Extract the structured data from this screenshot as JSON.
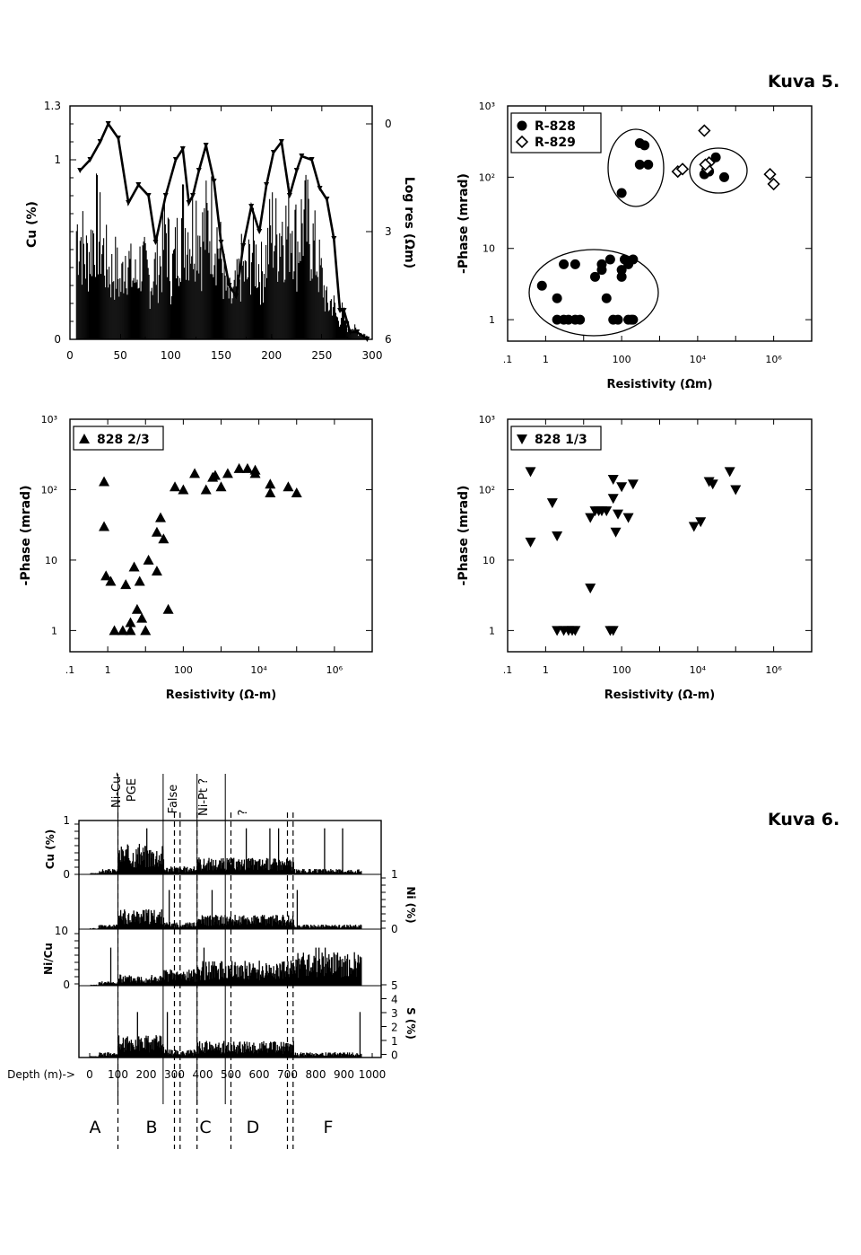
{
  "figure_labels": {
    "kuva5": "Kuva 5.",
    "kuva6": "Kuva 6."
  },
  "chart_data": [
    {
      "id": "cu-logres",
      "type": "bar",
      "xlabel": "",
      "ylabel": "Cu (%)",
      "y2label": "Log res (Ωm)",
      "xlim": [
        0,
        300
      ],
      "ylim": [
        0,
        1.3
      ],
      "y2lim": [
        -0.5,
        6
      ],
      "y2_inverted": true,
      "x_ticks": [
        "0",
        "50",
        "100",
        "150",
        "200",
        "250",
        "300"
      ],
      "y_ticks": [
        "0",
        "1",
        "1.3"
      ],
      "y2_ticks": [
        "0",
        "3",
        "6"
      ],
      "cu_envelope": {
        "x": [
          5,
          10,
          15,
          20,
          25,
          30,
          35,
          40,
          45,
          50,
          55,
          60,
          65,
          70,
          75,
          80,
          85,
          90,
          95,
          100,
          105,
          110,
          115,
          120,
          125,
          130,
          135,
          140,
          145,
          150,
          155,
          160,
          165,
          170,
          175,
          180,
          185,
          190,
          195,
          200,
          205,
          210,
          215,
          220,
          225,
          230,
          235,
          240,
          245,
          250,
          255,
          260,
          265,
          270,
          275,
          280,
          285,
          290,
          295
        ],
        "values": [
          0.85,
          0.8,
          0.6,
          0.7,
          0.9,
          0.75,
          0.6,
          0.5,
          0.55,
          0.4,
          0.7,
          0.5,
          0.45,
          0.6,
          0.5,
          0.45,
          0.55,
          0.6,
          0.85,
          0.5,
          0.65,
          0.9,
          0.85,
          0.8,
          0.95,
          0.75,
          0.85,
          0.9,
          0.8,
          0.6,
          0.35,
          0.3,
          0.4,
          0.55,
          0.45,
          0.7,
          0.6,
          0.5,
          0.65,
          0.85,
          0.75,
          0.9,
          0.8,
          0.95,
          0.7,
          0.9,
          0.85,
          0.75,
          0.6,
          0.45,
          0.25,
          0.3,
          0.15,
          0.2,
          0.1,
          0.1,
          0.05,
          0.05,
          0.02
        ]
      },
      "logres_line": {
        "x": [
          10,
          20,
          30,
          38,
          48,
          58,
          68,
          78,
          85,
          95,
          105,
          112,
          118,
          122,
          128,
          135,
          143,
          150,
          158,
          165,
          172,
          180,
          188,
          195,
          202,
          210,
          218,
          225,
          230,
          240,
          248,
          255,
          262,
          268,
          272,
          278,
          285,
          295
        ],
        "values": [
          1.3,
          1.0,
          0.5,
          0.0,
          0.4,
          2.2,
          1.7,
          2.0,
          3.3,
          2.0,
          1.0,
          0.7,
          2.2,
          2.0,
          1.3,
          0.6,
          1.6,
          3.3,
          4.5,
          4.8,
          3.4,
          2.3,
          3.0,
          1.7,
          0.8,
          0.5,
          2.0,
          1.3,
          0.9,
          1.0,
          1.8,
          2.1,
          3.2,
          5.2,
          5.2,
          5.8,
          5.8,
          6.0
        ]
      }
    },
    {
      "id": "r828-r829",
      "type": "scatter",
      "xlabel": "Resistivity (Ωm)",
      "ylabel": "-Phase (mrad)",
      "xscale": "log",
      "yscale": "log",
      "xlim": [
        0.1,
        10000000
      ],
      "ylim": [
        0.5,
        1000
      ],
      "x_ticks": [
        ".1",
        "1",
        "100",
        "10⁴",
        "10⁶"
      ],
      "y_ticks": [
        "1",
        "10",
        "10²",
        "10³"
      ],
      "legend": "top-left",
      "series": [
        {
          "name": "R-828",
          "marker": "filled-circle",
          "x": [
            0.8,
            3,
            2,
            6,
            4,
            8,
            20,
            30,
            40,
            60,
            80,
            120,
            150,
            180,
            2,
            3,
            6,
            200,
            30,
            50,
            100,
            200,
            100,
            150,
            300,
            20000,
            50000,
            30000,
            15000,
            100,
            300,
            500,
            400
          ],
          "y": [
            3,
            6,
            2,
            1,
            1,
            1,
            4,
            6,
            2,
            1,
            1,
            7,
            1,
            1,
            1,
            1,
            6,
            1,
            5,
            7,
            5,
            7,
            4,
            6,
            300,
            120,
            100,
            190,
            110,
            60,
            150,
            150,
            280
          ]
        },
        {
          "name": "R-829",
          "marker": "open-diamond",
          "x": [
            3000,
            4000,
            15000,
            20000,
            800000,
            1000000,
            18000,
            16000
          ],
          "y": [
            120,
            130,
            450,
            160,
            110,
            80,
            130,
            150
          ]
        }
      ],
      "annotations": [
        "ellipse-low-cluster",
        "ellipse-mid-cluster",
        "ellipse-high-cluster"
      ]
    },
    {
      "id": "828-2-3",
      "type": "scatter",
      "xlabel": "Resistivity (Ω-m)",
      "ylabel": "-Phase (mrad)",
      "xscale": "log",
      "yscale": "log",
      "xlim": [
        0.1,
        10000000
      ],
      "ylim": [
        0.5,
        1000
      ],
      "x_ticks": [
        ".1",
        "1",
        "100",
        "10⁴",
        "10⁶"
      ],
      "y_ticks": [
        "1",
        "10",
        "10²",
        "10³"
      ],
      "legend": "top-left",
      "series": [
        {
          "name": "828 2/3",
          "marker": "filled-triangle-up",
          "x": [
            0.8,
            0.8,
            0.9,
            1.2,
            1.5,
            2.5,
            3,
            4,
            4,
            5,
            6,
            7,
            8,
            10,
            12,
            20,
            20,
            25,
            30,
            40,
            60,
            100,
            200,
            400,
            600,
            700,
            1000,
            1500,
            3000,
            5000,
            8000,
            8000,
            20000,
            20000,
            60000,
            100000
          ],
          "y": [
            130,
            30,
            6,
            5,
            1,
            1,
            4.5,
            1.3,
            1,
            8,
            2,
            5,
            1.5,
            1,
            10,
            7,
            25,
            40,
            20,
            2,
            110,
            100,
            170,
            100,
            150,
            160,
            110,
            170,
            200,
            200,
            190,
            170,
            90,
            120,
            110,
            90
          ]
        }
      ]
    },
    {
      "id": "828-1-3",
      "type": "scatter",
      "xlabel": "Resistivity (Ω-m)",
      "ylabel": "-Phase (mrad)",
      "xscale": "log",
      "yscale": "log",
      "xlim": [
        0.1,
        10000000
      ],
      "ylim": [
        0.5,
        1000
      ],
      "x_ticks": [
        ".1",
        "1",
        "100",
        "10⁴",
        "10⁶"
      ],
      "y_ticks": [
        "1",
        "10",
        "10²",
        "10³"
      ],
      "legend": "top-left",
      "series": [
        {
          "name": "828 1/3",
          "marker": "filled-triangle-down",
          "x": [
            0.4,
            0.4,
            1.5,
            2,
            2,
            3,
            4,
            5,
            6,
            15,
            15,
            20,
            25,
            30,
            40,
            50,
            60,
            60,
            60,
            70,
            80,
            100,
            150,
            200,
            8000,
            12000,
            20000,
            25000,
            70000,
            100000
          ],
          "y": [
            180,
            18,
            65,
            22,
            1,
            1,
            1,
            1,
            1,
            4,
            40,
            50,
            50,
            50,
            50,
            1,
            1,
            140,
            75,
            25,
            45,
            110,
            40,
            120,
            30,
            35,
            130,
            120,
            180,
            100
          ]
        }
      ]
    },
    {
      "id": "depth-log",
      "type": "bar",
      "xlabel": "Depth (m)->",
      "xlim": [
        0,
        1000
      ],
      "x_ticks": [
        "0",
        "100",
        "200",
        "300",
        "400",
        "500",
        "600",
        "700",
        "800",
        "900",
        "1000"
      ],
      "panels": [
        {
          "name": "Cu (%)",
          "ylim": [
            0,
            1
          ],
          "y_ticks": [
            "0",
            "1"
          ],
          "side": "left"
        },
        {
          "name": "Ni (%)",
          "ylim": [
            0,
            1
          ],
          "y_ticks": [
            "0",
            "1"
          ],
          "side": "right"
        },
        {
          "name": "Ni/Cu",
          "ylim": [
            0,
            10
          ],
          "y_ticks": [
            "0",
            "10"
          ],
          "side": "left"
        },
        {
          "name": "S (%)",
          "ylim": [
            0,
            5
          ],
          "y_ticks": [
            "0",
            "1",
            "2",
            "3",
            "4",
            "5"
          ],
          "side": "right"
        }
      ],
      "zone_labels": [
        "Ni-Cu-PGE",
        "False",
        "Ni-Pt ?",
        "?"
      ],
      "section_labels": [
        "A",
        "B",
        "C",
        "D",
        "F"
      ],
      "boundaries_solid": [
        100,
        260,
        380,
        480
      ],
      "boundaries_dashed": [
        100,
        300,
        320,
        380,
        500,
        700,
        720
      ]
    }
  ]
}
